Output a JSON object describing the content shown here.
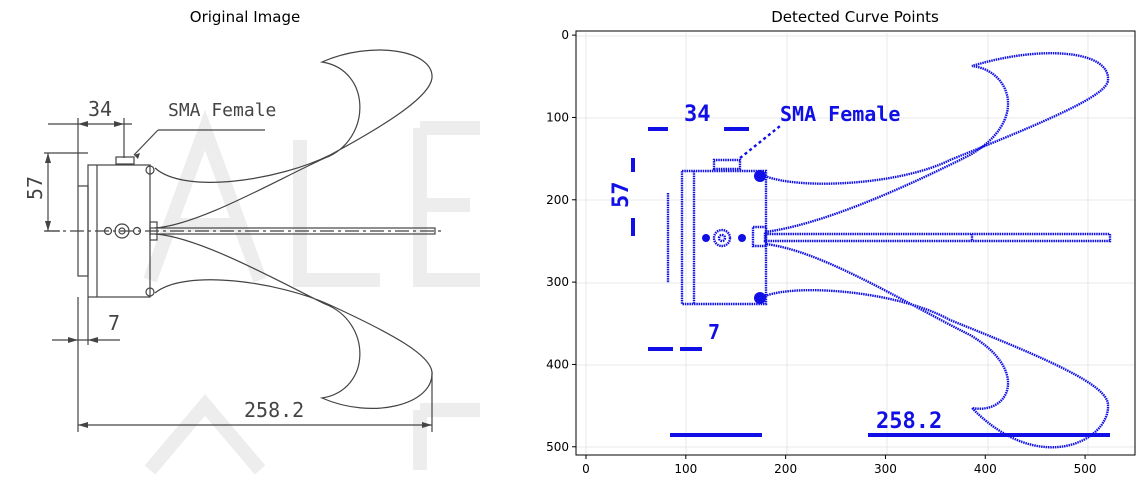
{
  "left_panel": {
    "title": "Original Image",
    "dimension_labels": [
      "34",
      "SMA Female",
      "57",
      "7",
      "258.2"
    ],
    "line_color": "#444444"
  },
  "right_panel": {
    "title": "Detected Curve Points",
    "dimension_labels": [
      "34",
      "SMA Female",
      "57",
      "7",
      "258.2"
    ],
    "point_color": "#1010e6"
  },
  "chart_data": {
    "type": "scatter",
    "title": "Detected Curve Points",
    "xlabel": "",
    "ylabel": "",
    "x_ticks": [
      0,
      100,
      200,
      300,
      400,
      500
    ],
    "y_ticks": [
      0,
      100,
      200,
      300,
      400,
      500
    ],
    "xlim": [
      -10,
      550
    ],
    "ylim": [
      510,
      -5
    ],
    "y_inverted": true,
    "grid": true
  }
}
